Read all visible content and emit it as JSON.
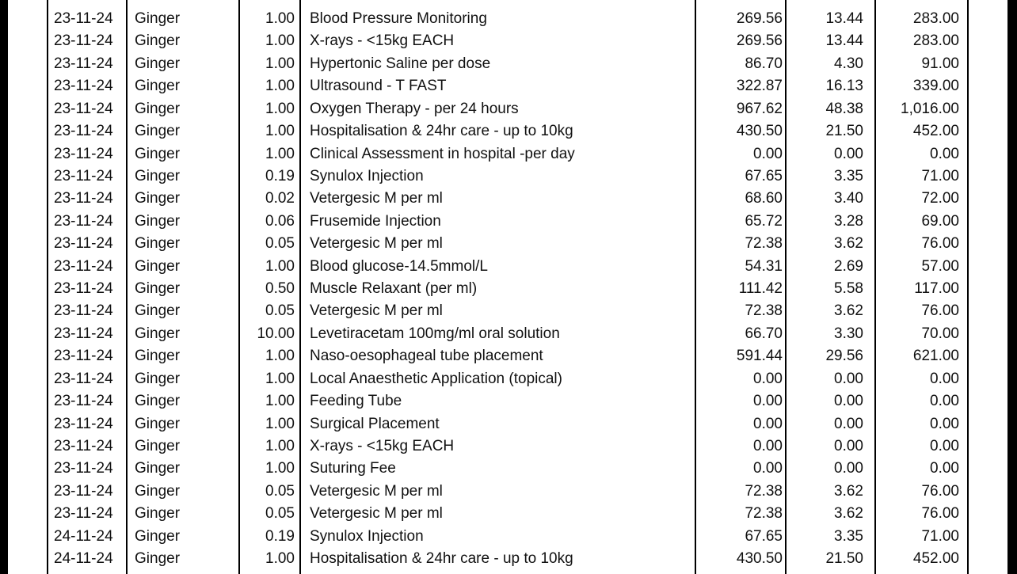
{
  "table": {
    "rows": [
      [
        "23-11-24",
        "Ginger",
        "1.00",
        "Blood Pressure Monitoring",
        "269.56",
        "13.44",
        "283.00"
      ],
      [
        "23-11-24",
        "Ginger",
        "1.00",
        "X-rays - <15kg EACH",
        "269.56",
        "13.44",
        "283.00"
      ],
      [
        "23-11-24",
        "Ginger",
        "1.00",
        "Hypertonic Saline per dose",
        "86.70",
        "4.30",
        "91.00"
      ],
      [
        "23-11-24",
        "Ginger",
        "1.00",
        "Ultrasound - T FAST",
        "322.87",
        "16.13",
        "339.00"
      ],
      [
        "23-11-24",
        "Ginger",
        "1.00",
        "Oxygen Therapy - per 24 hours",
        "967.62",
        "48.38",
        "1,016.00"
      ],
      [
        "23-11-24",
        "Ginger",
        "1.00",
        "Hospitalisation & 24hr care - up to 10kg",
        "430.50",
        "21.50",
        "452.00"
      ],
      [
        "23-11-24",
        "Ginger",
        "1.00",
        "Clinical Assessment in hospital -per day",
        "0.00",
        "0.00",
        "0.00"
      ],
      [
        "23-11-24",
        "Ginger",
        "0.19",
        "Synulox Injection",
        "67.65",
        "3.35",
        "71.00"
      ],
      [
        "23-11-24",
        "Ginger",
        "0.02",
        "Vetergesic M per ml",
        "68.60",
        "3.40",
        "72.00"
      ],
      [
        "23-11-24",
        "Ginger",
        "0.06",
        "Frusemide Injection",
        "65.72",
        "3.28",
        "69.00"
      ],
      [
        "23-11-24",
        "Ginger",
        "0.05",
        "Vetergesic M per ml",
        "72.38",
        "3.62",
        "76.00"
      ],
      [
        "23-11-24",
        "Ginger",
        "1.00",
        "Blood glucose-14.5mmol/L",
        "54.31",
        "2.69",
        "57.00"
      ],
      [
        "23-11-24",
        "Ginger",
        "0.50",
        "Muscle Relaxant (per ml)",
        "111.42",
        "5.58",
        "117.00"
      ],
      [
        "23-11-24",
        "Ginger",
        "0.05",
        "Vetergesic M per ml",
        "72.38",
        "3.62",
        "76.00"
      ],
      [
        "23-11-24",
        "Ginger",
        "10.00",
        "Levetiracetam 100mg/ml oral solution",
        "66.70",
        "3.30",
        "70.00"
      ],
      [
        "23-11-24",
        "Ginger",
        "1.00",
        "Naso-oesophageal tube placement",
        "591.44",
        "29.56",
        "621.00"
      ],
      [
        "23-11-24",
        "Ginger",
        "1.00",
        "Local Anaesthetic Application (topical)",
        "0.00",
        "0.00",
        "0.00"
      ],
      [
        "23-11-24",
        "Ginger",
        "1.00",
        "Feeding Tube",
        "0.00",
        "0.00",
        "0.00"
      ],
      [
        "23-11-24",
        "Ginger",
        "1.00",
        "Surgical Placement",
        "0.00",
        "0.00",
        "0.00"
      ],
      [
        "23-11-24",
        "Ginger",
        "1.00",
        "X-rays - <15kg EACH",
        "0.00",
        "0.00",
        "0.00"
      ],
      [
        "23-11-24",
        "Ginger",
        "1.00",
        "Suturing Fee",
        "0.00",
        "0.00",
        "0.00"
      ],
      [
        "23-11-24",
        "Ginger",
        "0.05",
        "Vetergesic M per ml",
        "72.38",
        "3.62",
        "76.00"
      ],
      [
        "23-11-24",
        "Ginger",
        "0.05",
        "Vetergesic M per ml",
        "72.38",
        "3.62",
        "76.00"
      ],
      [
        "24-11-24",
        "Ginger",
        "0.19",
        "Synulox Injection",
        "67.65",
        "3.35",
        "71.00"
      ],
      [
        "24-11-24",
        "Ginger",
        "1.00",
        "Hospitalisation & 24hr care - up to 10kg",
        "430.50",
        "21.50",
        "452.00"
      ]
    ]
  }
}
